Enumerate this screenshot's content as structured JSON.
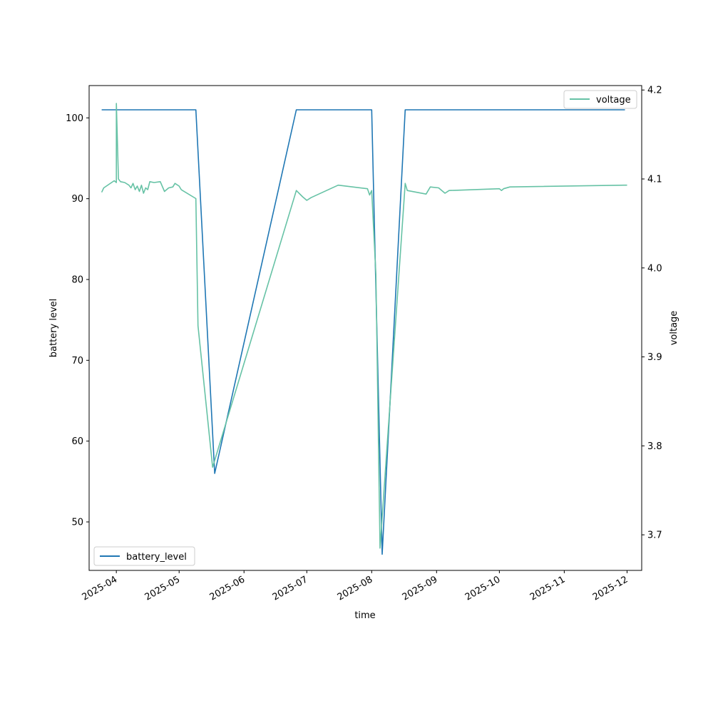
{
  "chart_data": {
    "type": "line",
    "xlabel": "time",
    "ylabel_left": "battery level",
    "ylabel_right": "voltage",
    "x_axis_type": "date",
    "xlim": [
      "2025-03-19",
      "2025-12-08"
    ],
    "ylim_left": [
      44,
      104
    ],
    "ylim_right": [
      3.66,
      4.205
    ],
    "x_ticks": [
      "2025-04",
      "2025-05",
      "2025-06",
      "2025-07",
      "2025-08",
      "2025-09",
      "2025-10",
      "2025-11",
      "2025-12"
    ],
    "y_ticks_left": [
      50,
      60,
      70,
      80,
      90,
      100
    ],
    "y_ticks_right": [
      3.7,
      3.8,
      3.9,
      4.0,
      4.1,
      4.2
    ],
    "y_tick_labels_right": [
      "3.7",
      "3.8",
      "3.9",
      "4.0",
      "4.1",
      "4.2"
    ],
    "grid": false,
    "series": [
      {
        "name": "battery_level",
        "axis": "left",
        "color": "#1f77b4",
        "legend_position": "lower-left",
        "points": [
          [
            "2025-03-25",
            101
          ],
          [
            "2025-05-09",
            101
          ],
          [
            "2025-05-18",
            56
          ],
          [
            "2025-06-26",
            101
          ],
          [
            "2025-08-01",
            101
          ],
          [
            "2025-08-06",
            46
          ],
          [
            "2025-08-17",
            101
          ],
          [
            "2025-11-30",
            101
          ]
        ]
      },
      {
        "name": "voltage",
        "axis": "right",
        "color": "#66c2a5",
        "legend_position": "upper-right",
        "points": [
          [
            "2025-03-25",
            4.085
          ],
          [
            "2025-03-26",
            4.09
          ],
          [
            "2025-03-31",
            4.098
          ],
          [
            "2025-04-01",
            4.096
          ],
          [
            "2025-04-01",
            4.185
          ],
          [
            "2025-04-02",
            4.1
          ],
          [
            "2025-04-03",
            4.097
          ],
          [
            "2025-04-05",
            4.096
          ],
          [
            "2025-04-07",
            4.093
          ],
          [
            "2025-04-08",
            4.09
          ],
          [
            "2025-04-09",
            4.095
          ],
          [
            "2025-04-10",
            4.088
          ],
          [
            "2025-04-11",
            4.092
          ],
          [
            "2025-04-12",
            4.086
          ],
          [
            "2025-04-13",
            4.093
          ],
          [
            "2025-04-14",
            4.084
          ],
          [
            "2025-04-15",
            4.09
          ],
          [
            "2025-04-16",
            4.088
          ],
          [
            "2025-04-17",
            4.097
          ],
          [
            "2025-04-19",
            4.096
          ],
          [
            "2025-04-22",
            4.097
          ],
          [
            "2025-04-24",
            4.086
          ],
          [
            "2025-04-26",
            4.09
          ],
          [
            "2025-04-28",
            4.091
          ],
          [
            "2025-04-29",
            4.095
          ],
          [
            "2025-05-01",
            4.092
          ],
          [
            "2025-05-02",
            4.088
          ],
          [
            "2025-05-09",
            4.078
          ],
          [
            "2025-05-10",
            3.935
          ],
          [
            "2025-05-17",
            3.776
          ],
          [
            "2025-06-26",
            4.087
          ],
          [
            "2025-06-29",
            4.08
          ],
          [
            "2025-07-01",
            4.076
          ],
          [
            "2025-07-03",
            4.079
          ],
          [
            "2025-07-16",
            4.093
          ],
          [
            "2025-07-30",
            4.089
          ],
          [
            "2025-07-31",
            4.082
          ],
          [
            "2025-08-01",
            4.087
          ],
          [
            "2025-08-03",
            3.993
          ],
          [
            "2025-08-05",
            3.685
          ],
          [
            "2025-08-17",
            4.095
          ],
          [
            "2025-08-18",
            4.087
          ],
          [
            "2025-08-27",
            4.083
          ],
          [
            "2025-08-29",
            4.091
          ],
          [
            "2025-09-02",
            4.09
          ],
          [
            "2025-09-05",
            4.084
          ],
          [
            "2025-09-07",
            4.087
          ],
          [
            "2025-10-01",
            4.089
          ],
          [
            "2025-10-02",
            4.087
          ],
          [
            "2025-10-03",
            4.089
          ],
          [
            "2025-10-06",
            4.091
          ],
          [
            "2025-11-30",
            4.093
          ],
          [
            "2025-12-01",
            4.093
          ]
        ]
      }
    ]
  }
}
